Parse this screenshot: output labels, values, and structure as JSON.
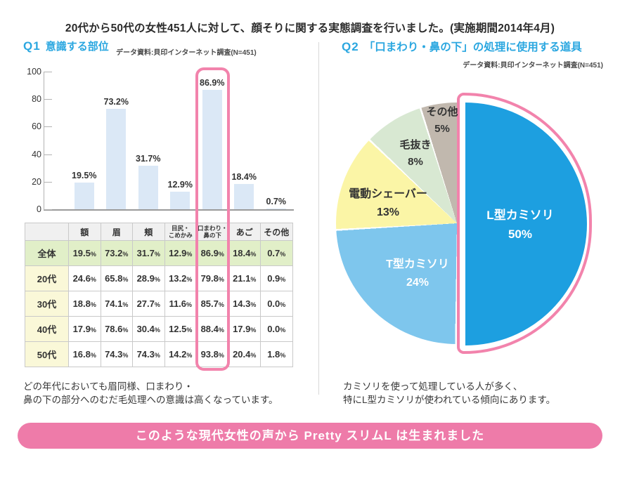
{
  "header": {
    "title": "20代から50代の女性451人に対して、顔そりに関する実態調査を行いました。(実施期間2014年4月)"
  },
  "q1": {
    "label": "Q1",
    "title": "意識する部位",
    "source": "データ資料:貝印インターネット調査(N=451)",
    "note": [
      "どの年代においても眉同様、口まわり・",
      "鼻の下の部分へのむだ毛処理への意識は高くなっています。"
    ]
  },
  "q2": {
    "label": "Q2",
    "title": "「口まわり・鼻の下」の処理に使用する道具",
    "source": "データ資料:貝印インターネット調査(N=451)",
    "note": [
      "カミソリを使って処理している人が多く、",
      "特にL型カミソリが使われている傾向にあります。"
    ]
  },
  "banner": {
    "text": "このような現代女性の声から Pretty スリムL は生まれました",
    "color": "#ee7ba9"
  },
  "colors": {
    "accent_blue": "#2ba7e0",
    "highlight_pink": "#f283ac",
    "bar_fill": "#dbe8f6"
  },
  "chart_data": [
    {
      "type": "bar",
      "title": "Q1 意識する部位",
      "source": "データ資料:貝印インターネット調査(N=451)",
      "categories": [
        "額",
        "眉",
        "頬",
        "目尻・こめかみ",
        "口まわり・鼻の下",
        "あご",
        "その他"
      ],
      "values": [
        19.5,
        73.2,
        31.7,
        12.9,
        86.9,
        18.4,
        0.7
      ],
      "value_labels": [
        "19.5%",
        "73.2%",
        "31.7%",
        "12.9%",
        "86.9%",
        "18.4%",
        "0.7%"
      ],
      "unit": "%",
      "ylim": [
        0,
        100
      ],
      "yticks": [
        0,
        20,
        40,
        60,
        80,
        100
      ],
      "grid": false,
      "bar_color": "#dbe8f6",
      "highlighted_category": "口まわり・鼻の下"
    },
    {
      "type": "pie",
      "title": "Q2 「口まわり・鼻の下」の処理に使用する道具",
      "source": "データ資料:貝印インターネット調査(N=451)",
      "labels": [
        "L型カミソリ",
        "T型カミソリ",
        "電動シェーバー",
        "毛抜き",
        "その他"
      ],
      "values": [
        50,
        24,
        13,
        8,
        5
      ],
      "value_labels": [
        "50%",
        "24%",
        "13%",
        "8%",
        "5%"
      ],
      "unit": "%",
      "colors": [
        "#1d9fe0",
        "#7ec6ed",
        "#fbf5a6",
        "#d8e8d2",
        "#c1b8ae"
      ],
      "start_angle": "top",
      "direction": "clockwise",
      "highlighted_slice": "L型カミソリ"
    },
    {
      "type": "table",
      "columns": [
        "",
        "額",
        "眉",
        "頬",
        "目尻・こめかみ",
        "口まわり・鼻の下",
        "あご",
        "その他"
      ],
      "rows": [
        [
          "全体",
          "19.5%",
          "73.2%",
          "31.7%",
          "12.9%",
          "86.9%",
          "18.4%",
          "0.7%"
        ],
        [
          "20代",
          "24.6%",
          "65.8%",
          "28.9%",
          "13.2%",
          "79.8%",
          "21.1%",
          "0.9%"
        ],
        [
          "30代",
          "18.8%",
          "74.1%",
          "27.7%",
          "11.6%",
          "85.7%",
          "14.3%",
          "0.0%"
        ],
        [
          "40代",
          "17.9%",
          "78.6%",
          "30.4%",
          "12.5%",
          "88.4%",
          "17.9%",
          "0.0%"
        ],
        [
          "50代",
          "16.8%",
          "74.3%",
          "74.3%",
          "14.2%",
          "93.8%",
          "20.4%",
          "1.8%"
        ]
      ],
      "highlighted_column": "口まわり・鼻の下"
    }
  ]
}
